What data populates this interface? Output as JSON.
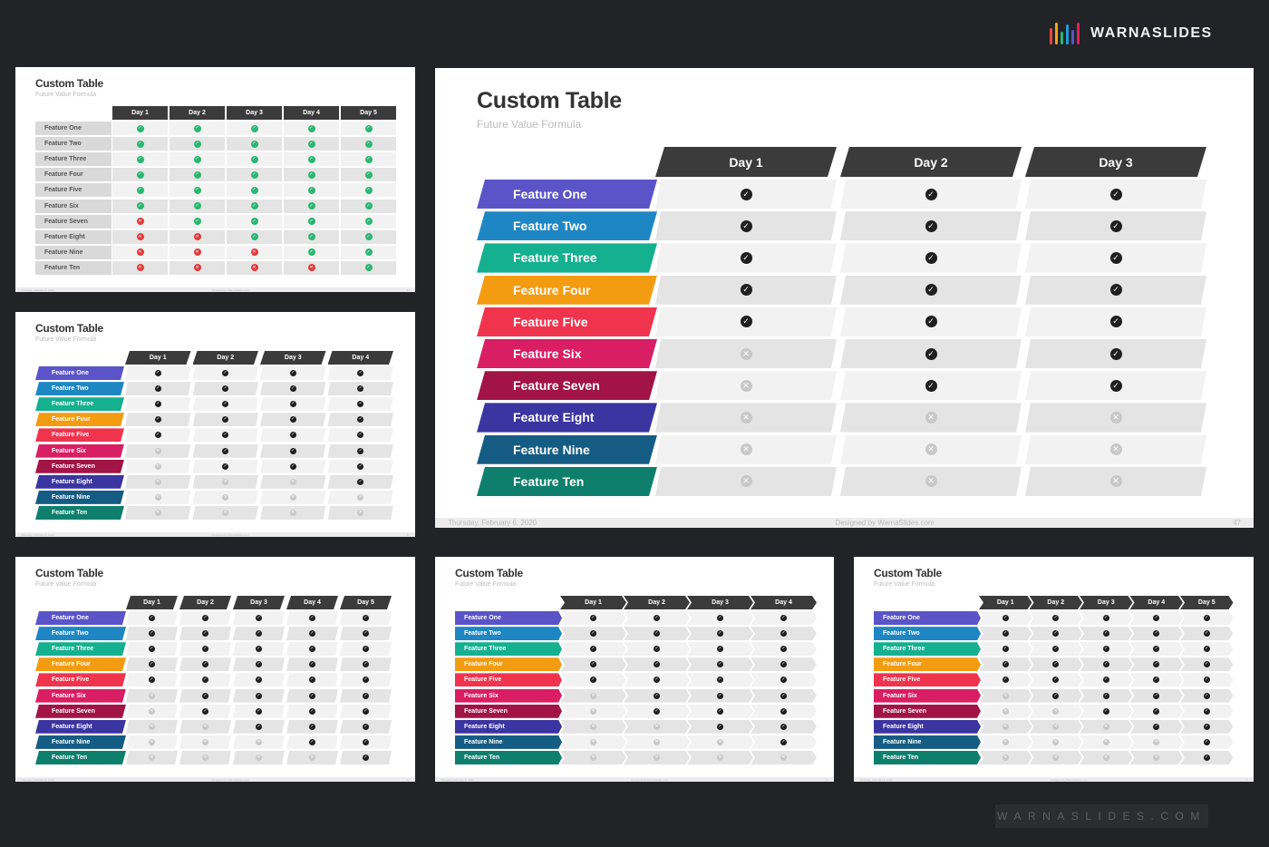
{
  "brand": {
    "name": "WARNASLIDES",
    "logo_colors": [
      "#e8463c",
      "#f3a11b",
      "#2bb673",
      "#1e9bd7",
      "#5a54c8",
      "#d7245f"
    ]
  },
  "website": "WARNASLIDES.COM",
  "colors": {
    "header": "#3b3b3b",
    "check_green": "#2bb673",
    "cross_red": "#e23b3b",
    "check_black": "#1f1f1f",
    "cross_grey": "#c8c8c8",
    "row_light": "#f2f2f2",
    "row_dark": "#e4e4e4"
  },
  "slides": [
    {
      "title": "Custom Table",
      "subtitle": "Future Value Formula",
      "footer_date": "Thursday, February 6, 2020",
      "footer_designer": "Designed by WarnaSlides.com",
      "page_number": "47",
      "style": "green-red",
      "label_style": "grey",
      "header_shape": "plain",
      "days": [
        "Day 1",
        "Day 2",
        "Day 3",
        "Day 4",
        "Day 5"
      ],
      "features": [
        {
          "label": "Feature One",
          "color": "#5a54c8",
          "marks": [
            1,
            1,
            1,
            1,
            1
          ]
        },
        {
          "label": "Feature Two",
          "color": "#1e87c3",
          "marks": [
            1,
            1,
            1,
            1,
            1
          ]
        },
        {
          "label": "Feature Three",
          "color": "#14b08f",
          "marks": [
            1,
            1,
            1,
            1,
            1
          ]
        },
        {
          "label": "Feature Four",
          "color": "#f39c12",
          "marks": [
            1,
            1,
            1,
            1,
            1
          ]
        },
        {
          "label": "Feature Five",
          "color": "#f0344e",
          "marks": [
            1,
            1,
            1,
            1,
            1
          ]
        },
        {
          "label": "Feature Six",
          "color": "#d91e63",
          "marks": [
            1,
            1,
            1,
            1,
            1
          ]
        },
        {
          "label": "Feature Seven",
          "color": "#a11445",
          "marks": [
            0,
            1,
            1,
            1,
            1
          ]
        },
        {
          "label": "Feature Eight",
          "color": "#3a35a0",
          "marks": [
            0,
            0,
            1,
            1,
            1
          ]
        },
        {
          "label": "Feature Nine",
          "color": "#155c84",
          "marks": [
            0,
            0,
            0,
            1,
            1
          ]
        },
        {
          "label": "Feature Ten",
          "color": "#0e7f6d",
          "marks": [
            0,
            0,
            0,
            0,
            1
          ]
        }
      ]
    },
    {
      "title": "Custom Table",
      "subtitle": "Future Value Formula",
      "footer_date": "Thursday, February 6, 2020",
      "footer_designer": "Designed by WarnaSlides.com",
      "page_number": "47",
      "style": "black-grey",
      "label_style": "color",
      "header_shape": "slant",
      "days": [
        "Day 1",
        "Day 2",
        "Day 3",
        "Day 4"
      ],
      "features": [
        {
          "label": "Feature One",
          "color": "#5a54c8",
          "marks": [
            1,
            1,
            1,
            1
          ]
        },
        {
          "label": "Feature Two",
          "color": "#1e87c3",
          "marks": [
            1,
            1,
            1,
            1
          ]
        },
        {
          "label": "Feature Three",
          "color": "#14b08f",
          "marks": [
            1,
            1,
            1,
            1
          ]
        },
        {
          "label": "Feature Four",
          "color": "#f39c12",
          "marks": [
            1,
            1,
            1,
            1
          ]
        },
        {
          "label": "Feature Five",
          "color": "#f0344e",
          "marks": [
            1,
            1,
            1,
            1
          ]
        },
        {
          "label": "Feature Six",
          "color": "#d91e63",
          "marks": [
            0,
            1,
            1,
            1
          ]
        },
        {
          "label": "Feature Seven",
          "color": "#a11445",
          "marks": [
            0,
            1,
            1,
            1
          ]
        },
        {
          "label": "Feature Eight",
          "color": "#3a35a0",
          "marks": [
            0,
            0,
            0,
            1
          ]
        },
        {
          "label": "Feature Nine",
          "color": "#155c84",
          "marks": [
            0,
            0,
            0,
            0
          ]
        },
        {
          "label": "Feature Ten",
          "color": "#0e7f6d",
          "marks": [
            0,
            0,
            0,
            0
          ]
        }
      ]
    },
    {
      "title": "Custom Table",
      "subtitle": "Future Value Formula",
      "footer_date": "Thursday, February 6, 2020",
      "footer_designer": "Designed by WarnaSlides.com",
      "page_number": "47",
      "style": "black-grey",
      "label_style": "color",
      "header_shape": "slant",
      "days": [
        "Day 1",
        "Day 2",
        "Day 3"
      ],
      "features": [
        {
          "label": "Feature One",
          "color": "#5a54c8",
          "marks": [
            1,
            1,
            1
          ]
        },
        {
          "label": "Feature Two",
          "color": "#1e87c3",
          "marks": [
            1,
            1,
            1
          ]
        },
        {
          "label": "Feature Three",
          "color": "#14b08f",
          "marks": [
            1,
            1,
            1
          ]
        },
        {
          "label": "Feature Four",
          "color": "#f39c12",
          "marks": [
            1,
            1,
            1
          ]
        },
        {
          "label": "Feature Five",
          "color": "#f0344e",
          "marks": [
            1,
            1,
            1
          ]
        },
        {
          "label": "Feature Six",
          "color": "#d91e63",
          "marks": [
            0,
            1,
            1
          ]
        },
        {
          "label": "Feature Seven",
          "color": "#a11445",
          "marks": [
            0,
            1,
            1
          ]
        },
        {
          "label": "Feature Eight",
          "color": "#3a35a0",
          "marks": [
            0,
            0,
            0
          ]
        },
        {
          "label": "Feature Nine",
          "color": "#155c84",
          "marks": [
            0,
            0,
            0
          ]
        },
        {
          "label": "Feature Ten",
          "color": "#0e7f6d",
          "marks": [
            0,
            0,
            0
          ]
        }
      ]
    },
    {
      "title": "Custom Table",
      "subtitle": "Future Value Formula",
      "footer_date": "Thursday, February 6, 2020",
      "footer_designer": "Designed by WarnaSlides.com",
      "page_number": "47",
      "style": "black-grey",
      "label_style": "color",
      "header_shape": "slant",
      "days": [
        "Day 1",
        "Day 2",
        "Day 3",
        "Day 4",
        "Day 5"
      ],
      "features": [
        {
          "label": "Feature One",
          "color": "#5a54c8",
          "marks": [
            1,
            1,
            1,
            1,
            1
          ]
        },
        {
          "label": "Feature Two",
          "color": "#1e87c3",
          "marks": [
            1,
            1,
            1,
            1,
            1
          ]
        },
        {
          "label": "Feature Three",
          "color": "#14b08f",
          "marks": [
            1,
            1,
            1,
            1,
            1
          ]
        },
        {
          "label": "Feature Four",
          "color": "#f39c12",
          "marks": [
            1,
            1,
            1,
            1,
            1
          ]
        },
        {
          "label": "Feature Five",
          "color": "#f0344e",
          "marks": [
            1,
            1,
            1,
            1,
            1
          ]
        },
        {
          "label": "Feature Six",
          "color": "#d91e63",
          "marks": [
            0,
            1,
            1,
            1,
            1
          ]
        },
        {
          "label": "Feature Seven",
          "color": "#a11445",
          "marks": [
            0,
            1,
            1,
            1,
            1
          ]
        },
        {
          "label": "Feature Eight",
          "color": "#3a35a0",
          "marks": [
            0,
            0,
            1,
            1,
            1
          ]
        },
        {
          "label": "Feature Nine",
          "color": "#155c84",
          "marks": [
            0,
            0,
            0,
            1,
            1
          ]
        },
        {
          "label": "Feature Ten",
          "color": "#0e7f6d",
          "marks": [
            0,
            0,
            0,
            0,
            1
          ]
        }
      ]
    },
    {
      "title": "Custom Table",
      "subtitle": "Future Value Formula",
      "footer_date": "Thursday, February 6, 2020",
      "footer_designer": "Designed by WarnaSlides.com",
      "page_number": "47",
      "style": "black-grey",
      "label_style": "arrow",
      "header_shape": "chevron",
      "days": [
        "Day 1",
        "Day 2",
        "Day 3",
        "Day 4"
      ],
      "features": [
        {
          "label": "Feature One",
          "color": "#5a54c8",
          "marks": [
            1,
            1,
            1,
            1
          ]
        },
        {
          "label": "Feature Two",
          "color": "#1e87c3",
          "marks": [
            1,
            1,
            1,
            1
          ]
        },
        {
          "label": "Feature Three",
          "color": "#14b08f",
          "marks": [
            1,
            1,
            1,
            1
          ]
        },
        {
          "label": "Feature Four",
          "color": "#f39c12",
          "marks": [
            1,
            1,
            1,
            1
          ]
        },
        {
          "label": "Feature Five",
          "color": "#f0344e",
          "marks": [
            1,
            1,
            1,
            1
          ]
        },
        {
          "label": "Feature Six",
          "color": "#d91e63",
          "marks": [
            0,
            1,
            1,
            1
          ]
        },
        {
          "label": "Feature Seven",
          "color": "#a11445",
          "marks": [
            0,
            1,
            1,
            1
          ]
        },
        {
          "label": "Feature Eight",
          "color": "#3a35a0",
          "marks": [
            0,
            0,
            1,
            1
          ]
        },
        {
          "label": "Feature Nine",
          "color": "#155c84",
          "marks": [
            0,
            0,
            0,
            1
          ]
        },
        {
          "label": "Feature Ten",
          "color": "#0e7f6d",
          "marks": [
            0,
            0,
            0,
            0
          ]
        }
      ]
    },
    {
      "title": "Custom Table",
      "subtitle": "Future Value Formula",
      "footer_date": "Thursday, February 6, 2020",
      "footer_designer": "Designed by WarnaSlides.com",
      "page_number": "47",
      "style": "black-grey",
      "label_style": "arrow",
      "header_shape": "chevron",
      "days": [
        "Day 1",
        "Day 2",
        "Day 3",
        "Day 4",
        "Day 5"
      ],
      "features": [
        {
          "label": "Feature One",
          "color": "#5a54c8",
          "marks": [
            1,
            1,
            1,
            1,
            1
          ]
        },
        {
          "label": "Feature Two",
          "color": "#1e87c3",
          "marks": [
            1,
            1,
            1,
            1,
            1
          ]
        },
        {
          "label": "Feature Three",
          "color": "#14b08f",
          "marks": [
            1,
            1,
            1,
            1,
            1
          ]
        },
        {
          "label": "Feature Four",
          "color": "#f39c12",
          "marks": [
            1,
            1,
            1,
            1,
            1
          ]
        },
        {
          "label": "Feature Five",
          "color": "#f0344e",
          "marks": [
            1,
            1,
            1,
            1,
            1
          ]
        },
        {
          "label": "Feature Six",
          "color": "#d91e63",
          "marks": [
            0,
            1,
            1,
            1,
            1
          ]
        },
        {
          "label": "Feature Seven",
          "color": "#a11445",
          "marks": [
            0,
            0,
            1,
            1,
            1
          ]
        },
        {
          "label": "Feature Eight",
          "color": "#3a35a0",
          "marks": [
            0,
            0,
            0,
            1,
            1
          ]
        },
        {
          "label": "Feature Nine",
          "color": "#155c84",
          "marks": [
            0,
            0,
            0,
            0,
            1
          ]
        },
        {
          "label": "Feature Ten",
          "color": "#0e7f6d",
          "marks": [
            0,
            0,
            0,
            0,
            1
          ]
        }
      ]
    }
  ]
}
